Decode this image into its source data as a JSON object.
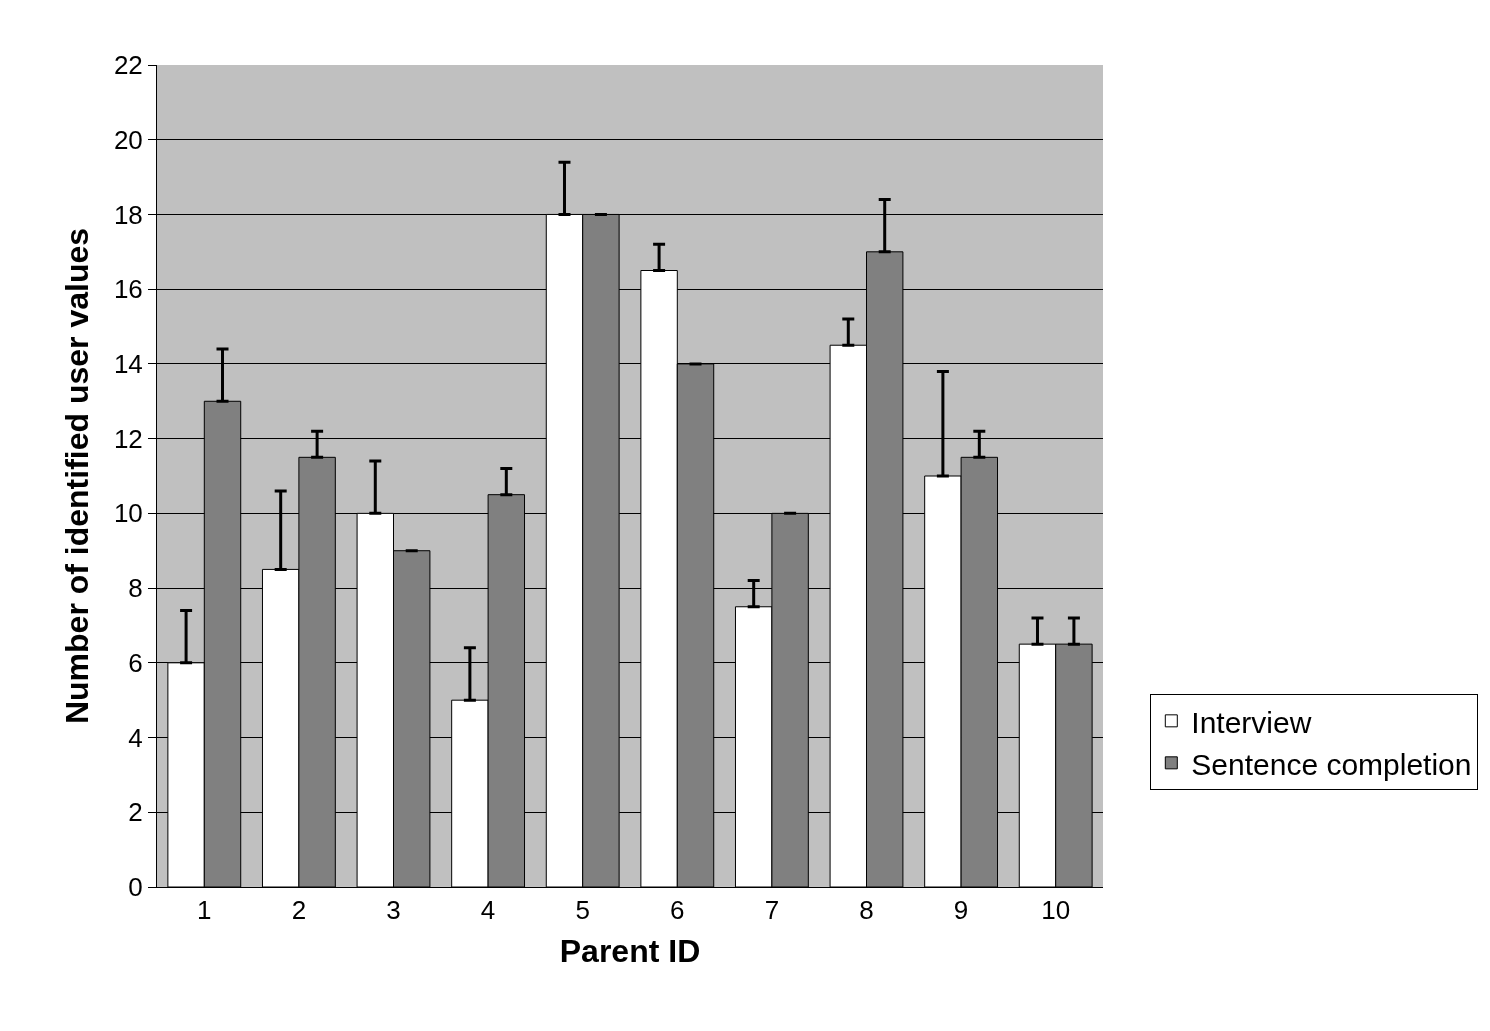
{
  "chart_data": {
    "type": "bar",
    "xlabel": "Parent ID",
    "ylabel": "Number of identified user values",
    "categories": [
      "1",
      "2",
      "3",
      "4",
      "5",
      "6",
      "7",
      "8",
      "9",
      "10"
    ],
    "series": [
      {
        "name": "Interview",
        "color": "#ffffff",
        "values": [
          6,
          8.5,
          10,
          5,
          18,
          16.5,
          7.5,
          14.5,
          11,
          6.5
        ],
        "errors": [
          [
            6,
            7.4
          ],
          [
            8.5,
            10.6
          ],
          [
            10,
            11.4
          ],
          [
            5,
            6.4
          ],
          [
            18,
            19.4
          ],
          [
            16.5,
            17.2
          ],
          [
            7.5,
            8.2
          ],
          [
            14.5,
            15.2
          ],
          [
            11,
            13.8
          ],
          [
            6.5,
            7.2
          ]
        ]
      },
      {
        "name": "Sentence completion",
        "color": "#808080",
        "values": [
          13,
          11.5,
          9,
          10.5,
          18,
          14,
          10,
          17,
          11.5,
          6.5
        ],
        "errors": [
          [
            13,
            14.4
          ],
          [
            11.5,
            12.2
          ],
          [
            9,
            9
          ],
          [
            10.5,
            11.2
          ],
          [
            18,
            18
          ],
          [
            14,
            14
          ],
          [
            10,
            10
          ],
          [
            17,
            18.4
          ],
          [
            11.5,
            12.2
          ],
          [
            6.5,
            7.2
          ]
        ]
      }
    ],
    "ylim": [
      0,
      22
    ],
    "yticks": [
      0,
      2,
      4,
      6,
      8,
      10,
      12,
      14,
      16,
      18,
      20,
      22
    ],
    "grid": "y",
    "legend": "right"
  }
}
